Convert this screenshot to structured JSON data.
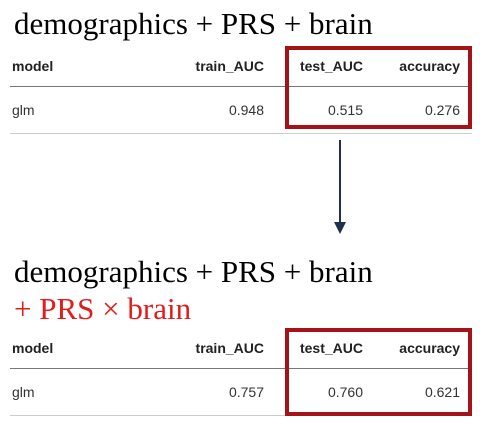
{
  "top": {
    "title": "demographics + PRS + brain",
    "table": {
      "headers": [
        "model",
        "train_AUC",
        "test_AUC",
        "accuracy"
      ],
      "row": [
        "glm",
        "0.948",
        "0.515",
        "0.276"
      ]
    }
  },
  "bottom": {
    "title_line1": "demographics + PRS + brain",
    "title_line2": "+ PRS × brain",
    "table": {
      "headers": [
        "model",
        "train_AUC",
        "test_AUC",
        "accuracy"
      ],
      "row": [
        "glm",
        "0.757",
        "0.760",
        "0.621"
      ]
    }
  },
  "colors": {
    "highlight_box": "#a31318",
    "interaction_text": "#e31b1b",
    "arrow": "#1f2f4f"
  }
}
